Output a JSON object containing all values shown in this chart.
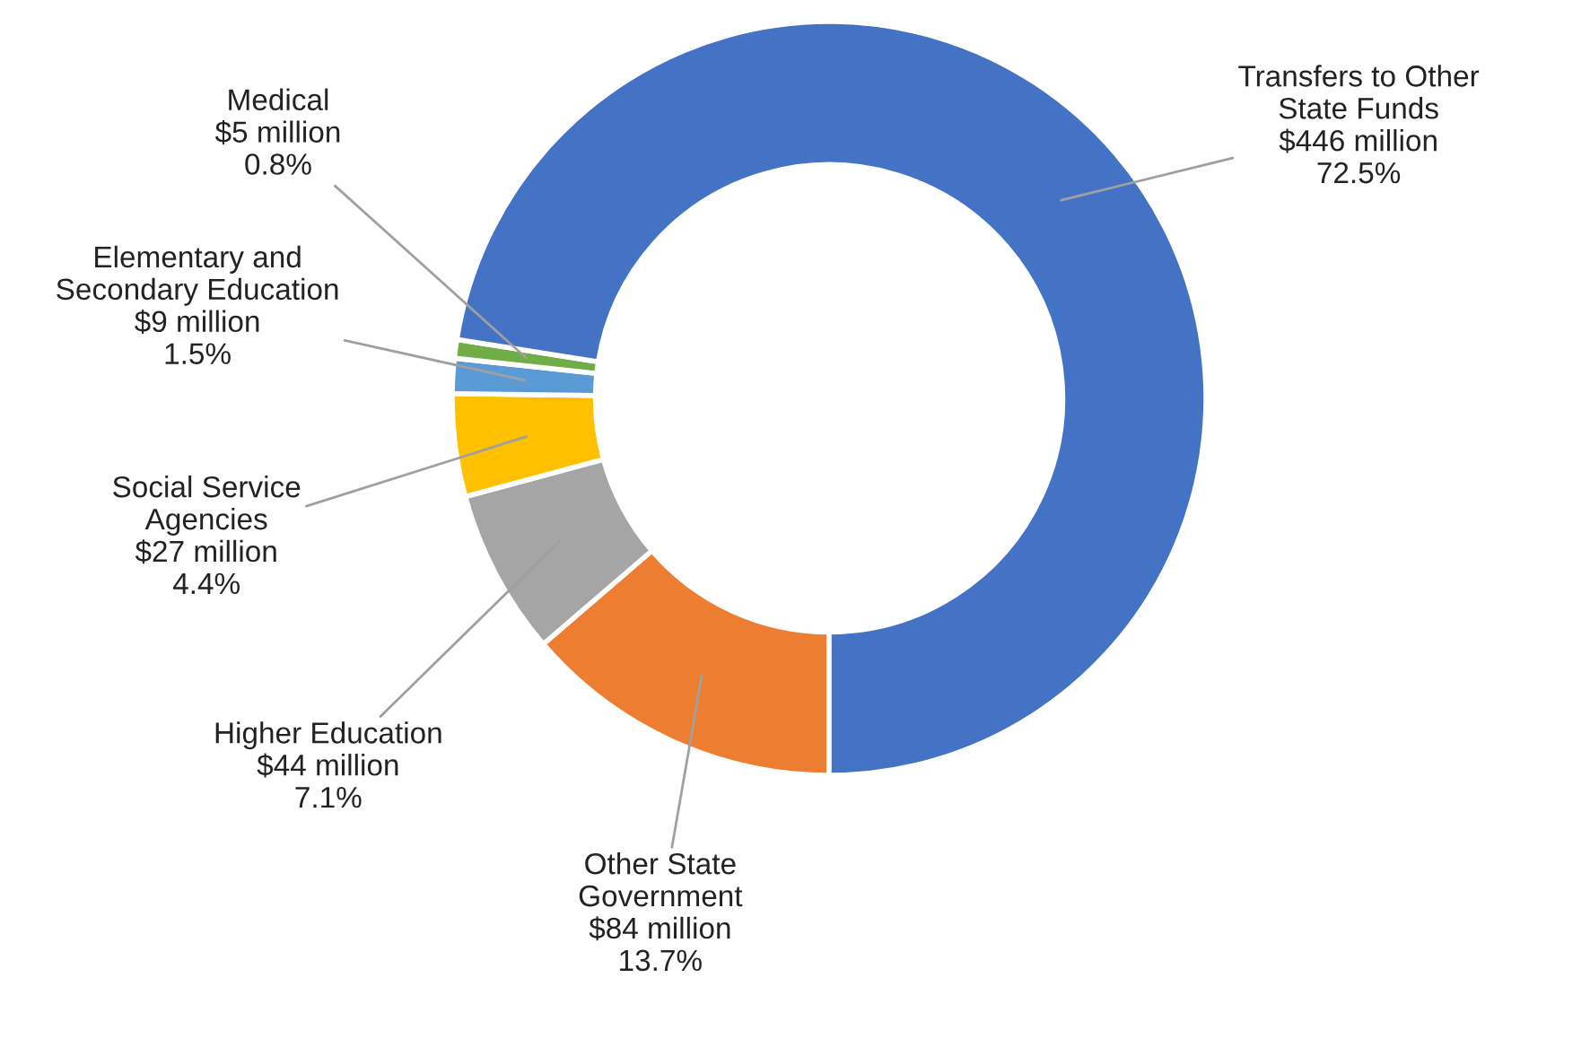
{
  "chart_data": {
    "type": "donut",
    "categories": [
      "Other State\nGovernment",
      "Higher Education",
      "Social Service\nAgencies",
      "Elementary and\nSecondary Education",
      "Medical",
      "Transfers to Other\nState Funds"
    ],
    "values": [
      13.7,
      7.1,
      4.4,
      1.5,
      0.8,
      72.5
    ],
    "colors": [
      "#ed7d31",
      "#a5a5a5",
      "#ffc000",
      "#5b9bd5",
      "#70ad47",
      "#4472c4"
    ],
    "value_labels": [
      "$84 million\n13.7%",
      "$44 million\n7.1%",
      "$27 million\n4.4%",
      "$9 million\n1.5%",
      "$5 million\n0.8%",
      "$446 million\n72.5%"
    ]
  }
}
